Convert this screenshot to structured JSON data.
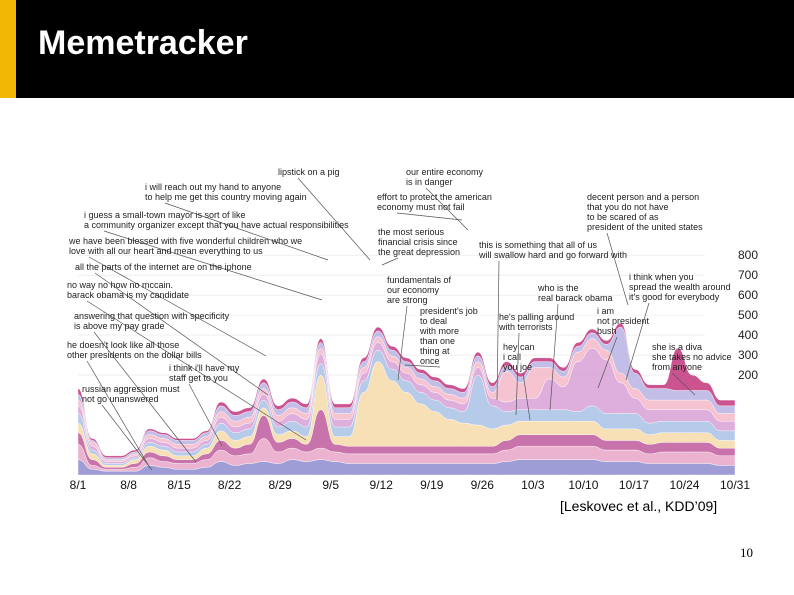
{
  "slide": {
    "title": "Memetracker",
    "citation": "[Leskovec et al., KDD’09]",
    "page_number": "10"
  },
  "colors": {
    "title_bar": "#000000",
    "accent": "#f2b705",
    "series_palette": [
      "#8d8ccf",
      "#e9a6c8",
      "#c05b9e",
      "#f6d9a9",
      "#a9c1e6",
      "#d8a0d6",
      "#f4b8c8",
      "#b7b3e3",
      "#c2367d"
    ]
  },
  "chart_data": {
    "type": "area",
    "subtype": "streamgraph",
    "x": [
      "8/1",
      "8/3",
      "8/5",
      "8/7",
      "8/9",
      "8/11",
      "8/13",
      "8/15",
      "8/17",
      "8/19",
      "8/21",
      "8/23",
      "8/25",
      "8/27",
      "8/29",
      "8/31",
      "9/2",
      "9/4",
      "9/6",
      "9/8",
      "9/10",
      "9/12",
      "9/14",
      "9/16",
      "9/18",
      "9/20",
      "9/22",
      "9/24",
      "9/26",
      "9/28",
      "9/30",
      "10/2",
      "10/4",
      "10/6",
      "10/8",
      "10/10",
      "10/12",
      "10/14",
      "10/16",
      "10/18",
      "10/20",
      "10/22",
      "10/24",
      "10/26",
      "10/28",
      "10/30",
      "10/31"
    ],
    "x_tick_labels": [
      "8/1",
      "8/8",
      "8/15",
      "8/22",
      "8/29",
      "9/5",
      "9/12",
      "9/19",
      "9/26",
      "10/3",
      "10/10",
      "10/17",
      "10/24",
      "10/31"
    ],
    "y_tick_labels": [
      "200",
      "300",
      "400",
      "500",
      "600",
      "700",
      "800"
    ],
    "ylim": [
      0,
      820
    ],
    "xlabel": "",
    "ylabel": "",
    "grid": true,
    "series": [
      {
        "values": [
          40,
          15,
          10,
          10,
          10,
          25,
          20,
          15,
          15,
          20,
          35,
          25,
          30,
          35,
          30,
          40,
          35,
          40,
          35,
          30,
          30,
          30,
          30,
          30,
          30,
          30,
          30,
          30,
          30,
          30,
          35,
          40,
          40,
          40,
          40,
          40,
          40,
          35,
          35,
          35,
          30,
          30,
          30,
          30,
          30,
          25,
          25
        ]
      },
      {
        "values": [
          40,
          10,
          5,
          5,
          10,
          20,
          15,
          15,
          15,
          20,
          30,
          25,
          25,
          60,
          30,
          30,
          25,
          30,
          25,
          25,
          25,
          25,
          25,
          25,
          25,
          25,
          25,
          25,
          25,
          25,
          30,
          35,
          35,
          35,
          35,
          35,
          35,
          30,
          30,
          30,
          25,
          30,
          30,
          30,
          30,
          25,
          25
        ]
      },
      {
        "values": [
          30,
          15,
          5,
          5,
          10,
          15,
          15,
          10,
          10,
          15,
          25,
          20,
          25,
          60,
          25,
          25,
          20,
          100,
          20,
          20,
          20,
          20,
          20,
          20,
          20,
          20,
          20,
          20,
          20,
          20,
          25,
          30,
          30,
          30,
          30,
          30,
          30,
          25,
          25,
          25,
          25,
          25,
          25,
          25,
          25,
          20,
          20
        ]
      },
      {
        "values": [
          25,
          15,
          5,
          5,
          10,
          15,
          15,
          10,
          10,
          15,
          25,
          20,
          20,
          20,
          20,
          20,
          20,
          90,
          20,
          25,
          140,
          220,
          170,
          140,
          110,
          90,
          70,
          60,
          55,
          45,
          40,
          35,
          35,
          35,
          35,
          35,
          35,
          30,
          30,
          30,
          25,
          25,
          25,
          25,
          25,
          20,
          20
        ]
      },
      {
        "values": [
          25,
          10,
          5,
          5,
          5,
          10,
          10,
          10,
          10,
          10,
          20,
          20,
          20,
          20,
          20,
          25,
          25,
          30,
          25,
          25,
          30,
          30,
          30,
          30,
          30,
          30,
          30,
          30,
          130,
          60,
          35,
          30,
          30,
          30,
          30,
          25,
          40,
          40,
          40,
          40,
          30,
          30,
          30,
          30,
          30,
          25,
          25
        ]
      },
      {
        "values": [
          20,
          10,
          5,
          5,
          5,
          10,
          10,
          10,
          10,
          10,
          15,
          15,
          15,
          15,
          15,
          20,
          20,
          25,
          20,
          20,
          20,
          20,
          20,
          20,
          20,
          20,
          20,
          20,
          20,
          20,
          25,
          30,
          30,
          80,
          60,
          130,
          150,
          140,
          80,
          40,
          35,
          30,
          30,
          30,
          30,
          25,
          25
        ]
      },
      {
        "values": [
          15,
          10,
          5,
          5,
          5,
          10,
          10,
          10,
          10,
          10,
          15,
          15,
          15,
          15,
          15,
          15,
          15,
          15,
          15,
          15,
          15,
          15,
          15,
          15,
          15,
          15,
          15,
          15,
          15,
          15,
          80,
          40,
          80,
          30,
          25,
          25,
          25,
          25,
          25,
          25,
          25,
          25,
          25,
          25,
          25,
          20,
          20
        ]
      },
      {
        "values": [
          15,
          5,
          5,
          5,
          5,
          10,
          10,
          10,
          10,
          10,
          15,
          15,
          15,
          15,
          15,
          15,
          15,
          15,
          15,
          15,
          15,
          15,
          15,
          15,
          15,
          15,
          15,
          15,
          15,
          15,
          15,
          15,
          15,
          15,
          15,
          15,
          15,
          15,
          120,
          40,
          30,
          30,
          25,
          25,
          25,
          20,
          20
        ]
      },
      {
        "values": [
          15,
          5,
          5,
          5,
          5,
          5,
          5,
          5,
          5,
          5,
          10,
          10,
          10,
          10,
          10,
          10,
          10,
          10,
          10,
          10,
          10,
          10,
          10,
          10,
          10,
          10,
          10,
          10,
          10,
          10,
          10,
          10,
          10,
          10,
          10,
          10,
          10,
          10,
          10,
          10,
          10,
          10,
          110,
          40,
          20,
          15,
          15
        ]
      }
    ],
    "annotations": [
      "lipstick on a pig",
      "our entire economy is in danger",
      "i will reach out my hand to anyone to help me get this country moving again",
      "effort to protect the american economy must not fail",
      "decent person and a person that you do not have to be scared of as president of the united states",
      "i guess a small-town mayor is sort of like a community organizer except that you have actual responsibilities",
      "we have been blessed with five wonderful children who we love with all our heart and mean everything to us",
      "the most serious financial crisis since the great depression",
      "this is something that all of us will swallow hard and go forward with",
      "all the parts of the internet are on the iphone",
      "i think when you spread the wealth around it's good for everybody",
      "no way no how no mccain. barack obama is my candidate",
      "fundamentals of our economy are strong",
      "who is the real barack obama",
      "answering that question with specificity is above my pay grade",
      "president's job to deal with more than one thing at once",
      "he's palling around with terrorists",
      "i am not president bush",
      "he doesn't look like all those other presidents on the dollar bills",
      "hey can i call you joe",
      "i think i'll have my staff get to you",
      "she is a diva she takes no advice from anyone",
      "russian aggression must not go unanswered"
    ]
  }
}
